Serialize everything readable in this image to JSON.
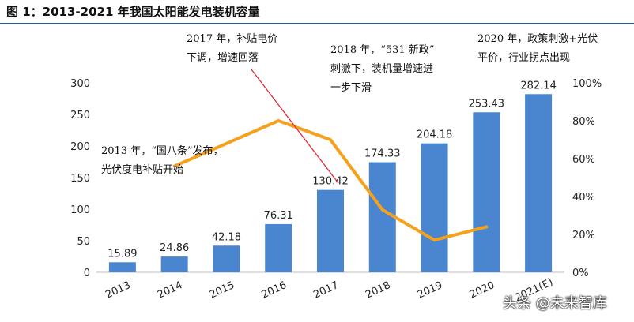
{
  "figure_title": "图 1：2013-2021 年我国太阳能发电装机容量",
  "watermark": "头条 @未来智库",
  "chart_data": {
    "type": "bar",
    "categories": [
      "2013",
      "2014",
      "2015",
      "2016",
      "2017",
      "2018",
      "2019",
      "2020",
      "2021(E)"
    ],
    "series": [
      {
        "name": "",
        "type": "bar",
        "axis": "left",
        "color": "#4a86cf",
        "values": [
          15.89,
          24.86,
          42.18,
          76.31,
          130.42,
          174.33,
          204.18,
          253.43,
          282.14
        ],
        "labels": [
          "15.89",
          "24.86",
          "42.18",
          "76.31",
          "130.42",
          "174.33",
          "204.18",
          "253.43",
          "282.14"
        ]
      },
      {
        "name": "",
        "type": "line",
        "axis": "right",
        "color": "#f5a11c",
        "values": [
          null,
          56,
          68,
          80,
          70,
          33,
          17,
          24,
          null
        ]
      }
    ],
    "y_left": {
      "ylim": [
        0,
        300
      ],
      "ticks": [
        "0",
        "50",
        "100",
        "150",
        "200",
        "250",
        "300"
      ]
    },
    "y_right": {
      "ylim": [
        0,
        100
      ],
      "ticks": [
        "0%",
        "20%",
        "40%",
        "60%",
        "80%",
        "100%"
      ]
    },
    "grid": false,
    "annotations": [
      {
        "id": "a2013",
        "lines": [
          "2013 年，“国八条”发布，",
          "光伏度电补贴开始"
        ]
      },
      {
        "id": "a2017",
        "lines": [
          "2017 年，补贴电价",
          "下调，增速回落"
        ]
      },
      {
        "id": "a2018",
        "lines": [
          "2018 年，“531 新政”",
          "刺激下，装机量增速进",
          "一步下滑"
        ]
      },
      {
        "id": "a2020",
        "lines": [
          "2020 年，政策刺激+光伏",
          "平价，行业拐点出现"
        ]
      }
    ],
    "arrow_color": "#e8202a"
  }
}
